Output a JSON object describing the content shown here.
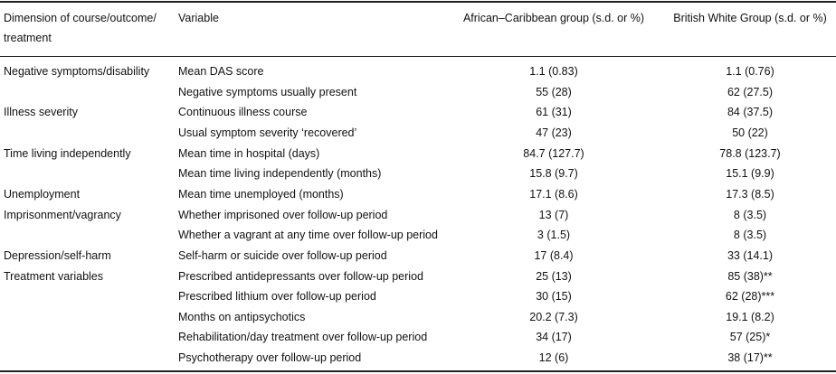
{
  "table": {
    "header": [
      "Dimension of course/outcome/ treatment",
      "Variable",
      "African–Caribbean group (s.d. or %)",
      "British White Group (s.d. or %)"
    ],
    "groups": [
      {
        "dimension": "Negative symptoms/disability",
        "rows": [
          [
            "Mean DAS score",
            "1.1 (0.83)",
            "1.1 (0.76)"
          ],
          [
            "Negative symptoms usually present",
            "55 (28)",
            "62 (27.5)"
          ]
        ]
      },
      {
        "dimension": "Illness severity",
        "rows": [
          [
            "Continuous illness course",
            "61 (31)",
            "84 (37.5)"
          ],
          [
            "Usual symptom severity ‘recovered’",
            "47 (23)",
            "50 (22)"
          ]
        ]
      },
      {
        "dimension": "Time living independently",
        "rows": [
          [
            "Mean time in hospital (days)",
            "84.7 (127.7)",
            "78.8 (123.7)"
          ],
          [
            "Mean time living independently (months)",
            "15.8 (9.7)",
            "15.1 (9.9)"
          ]
        ]
      },
      {
        "dimension": "Unemployment",
        "rows": [
          [
            "Mean time unemployed (months)",
            "17.1 (8.6)",
            "17.3 (8.5)"
          ]
        ]
      },
      {
        "dimension": "Imprisonment/vagrancy",
        "rows": [
          [
            "Whether imprisoned over follow-up period",
            "13 (7)",
            "8 (3.5)"
          ],
          [
            "Whether a vagrant at any time over follow-up period",
            "3 (1.5)",
            "8 (3.5)"
          ]
        ]
      },
      {
        "dimension": "Depression/self-harm",
        "rows": [
          [
            "Self-harm or suicide over follow-up period",
            "17 (8.4)",
            "33 (14.1)"
          ]
        ]
      },
      {
        "dimension": "Treatment variables",
        "rows": [
          [
            "Prescribed antidepressants over follow-up period",
            "25 (13)",
            "85 (38)**"
          ],
          [
            "Prescribed lithium over follow-up period",
            "30 (15)",
            "62 (28)***"
          ],
          [
            "Months on antipsychotics",
            "20.2 (7.3)",
            "19.1 (8.2)"
          ],
          [
            "Rehabilitation/day treatment over follow-up period",
            "34 (17)",
            "57 (25)*"
          ],
          [
            "Psychotherapy over follow-up period",
            "12 (6)",
            "38 (17)**"
          ]
        ]
      }
    ]
  }
}
